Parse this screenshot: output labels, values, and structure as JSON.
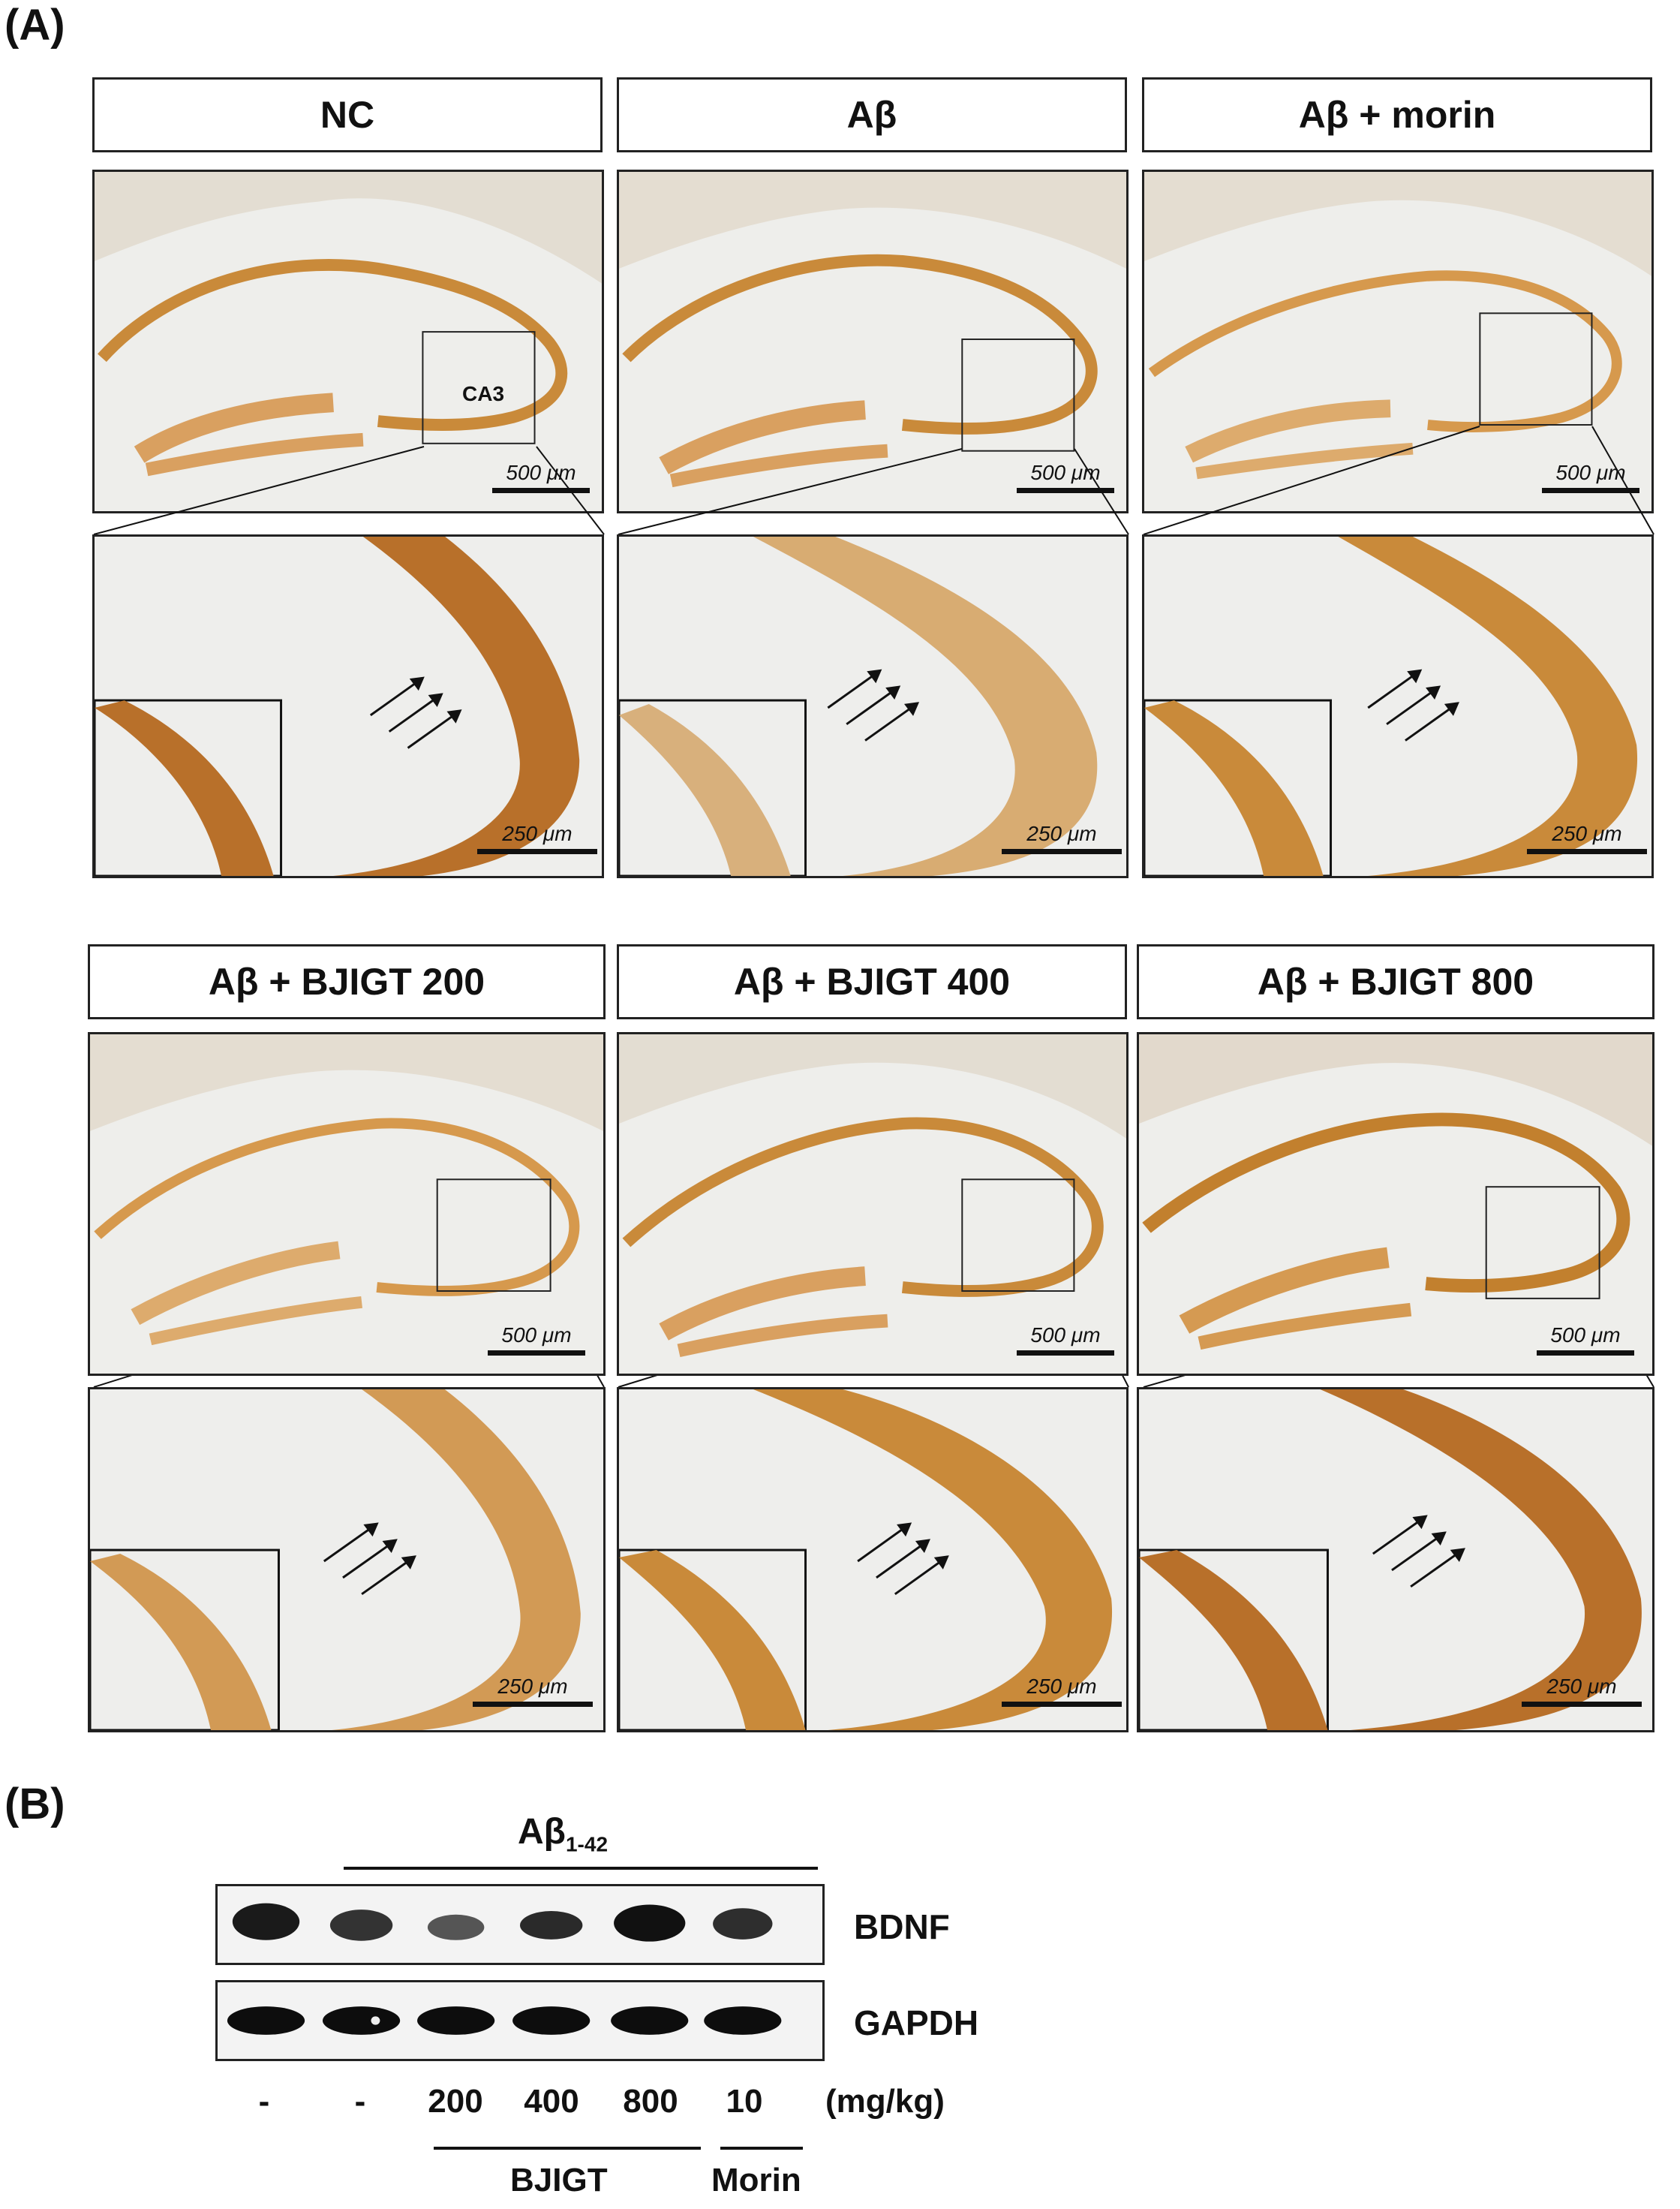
{
  "panel_a_label": "(A)",
  "panel_b_label": "(B)",
  "groups": [
    "NC",
    "Aβ",
    "Aβ + morin",
    "Aβ + BJIGT 200",
    "Aβ + BJIGT 400",
    "Aβ + BJIGT 800"
  ],
  "ca3_label": "CA3",
  "scale_overview": "500 μm",
  "scale_zoom": "250 μm",
  "colors": {
    "tissue_bg": "#efefec",
    "stain": "#c98a3a",
    "stain_dark": "#a8641e",
    "white_matter": "#e6e6e3"
  },
  "blot": {
    "treatment_label": "Aβ",
    "treatment_subscript": "1-42",
    "rows": [
      "BDNF",
      "GAPDH"
    ],
    "lanes": [
      "-",
      "-",
      "200",
      "400",
      "800",
      "10"
    ],
    "unit": "(mg/kg)",
    "bjigt_label": "BJIGT",
    "morin_label": "Morin"
  }
}
